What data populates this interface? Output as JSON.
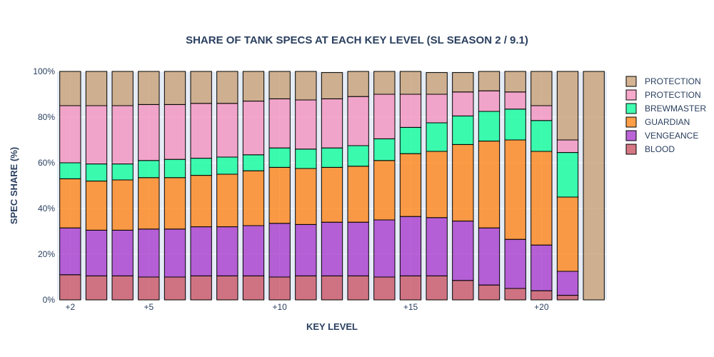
{
  "chart_data": {
    "type": "bar",
    "stacked": true,
    "title": "SHARE OF TANK SPECS AT EACH KEY LEVEL (SL SEASON 2 / 9.1)",
    "xlabel": "KEY LEVEL",
    "ylabel": "SPEC SHARE (%)",
    "ylim": [
      0,
      100
    ],
    "y_ticks": [
      0,
      20,
      40,
      60,
      80,
      100
    ],
    "y_tick_labels": [
      "0%",
      "20%",
      "40%",
      "60%",
      "80%",
      "100%"
    ],
    "x_ticks": [
      2,
      5,
      10,
      15,
      20
    ],
    "x_tick_labels": [
      "+2",
      "+5",
      "+10",
      "+15",
      "+20"
    ],
    "x": [
      2,
      3,
      4,
      5,
      6,
      7,
      8,
      9,
      10,
      11,
      12,
      13,
      14,
      15,
      16,
      17,
      18,
      19,
      20,
      21,
      22
    ],
    "legend_position": "right",
    "grid": true,
    "series": [
      {
        "name": "BLOOD",
        "color": "#c74b5b",
        "values": [
          11,
          10.5,
          10.5,
          10,
          10,
          10.5,
          10.5,
          10.5,
          10,
          10.5,
          10.5,
          10.5,
          10,
          10.5,
          10.5,
          8.5,
          6.5,
          5,
          4,
          2,
          0
        ]
      },
      {
        "name": "VENGEANCE",
        "color": "#a330c9",
        "values": [
          20.5,
          20,
          20,
          21,
          21,
          21.5,
          21.5,
          22,
          23.5,
          22.5,
          23.5,
          23.5,
          25,
          26,
          25.5,
          26,
          25,
          21.5,
          20,
          10.5,
          0
        ]
      },
      {
        "name": "GUARDIAN",
        "color": "#ff7d0a",
        "values": [
          21.5,
          21.5,
          22,
          22.5,
          22.5,
          22.5,
          23,
          24,
          24.5,
          24.5,
          24,
          24.5,
          26,
          27.5,
          29,
          33.5,
          38,
          43.5,
          41,
          32.5,
          0
        ]
      },
      {
        "name": "BREWMASTER",
        "color": "#00ff96",
        "values": [
          7,
          7.5,
          7,
          7.5,
          8,
          7.5,
          7.5,
          7,
          8.5,
          8.5,
          8.5,
          9,
          9.5,
          11.5,
          12.5,
          12.5,
          13,
          13.5,
          13.5,
          19.5,
          0
        ]
      },
      {
        "name": "PROTECTION",
        "color": "#f48cba",
        "values": [
          25,
          25.5,
          25.5,
          24.5,
          24,
          24,
          23.5,
          23.5,
          21.5,
          21.5,
          21.5,
          21.5,
          19.5,
          14.5,
          12.5,
          10.5,
          9,
          7.5,
          6.5,
          5.5,
          0
        ]
      },
      {
        "name": "PROTECTION",
        "color": "#c69b6d",
        "values": [
          15,
          15,
          15,
          14.5,
          14.5,
          14,
          14,
          13,
          12,
          12.5,
          11.5,
          11,
          10,
          10,
          9.5,
          8.5,
          8.5,
          9,
          15,
          30,
          100
        ]
      }
    ]
  }
}
